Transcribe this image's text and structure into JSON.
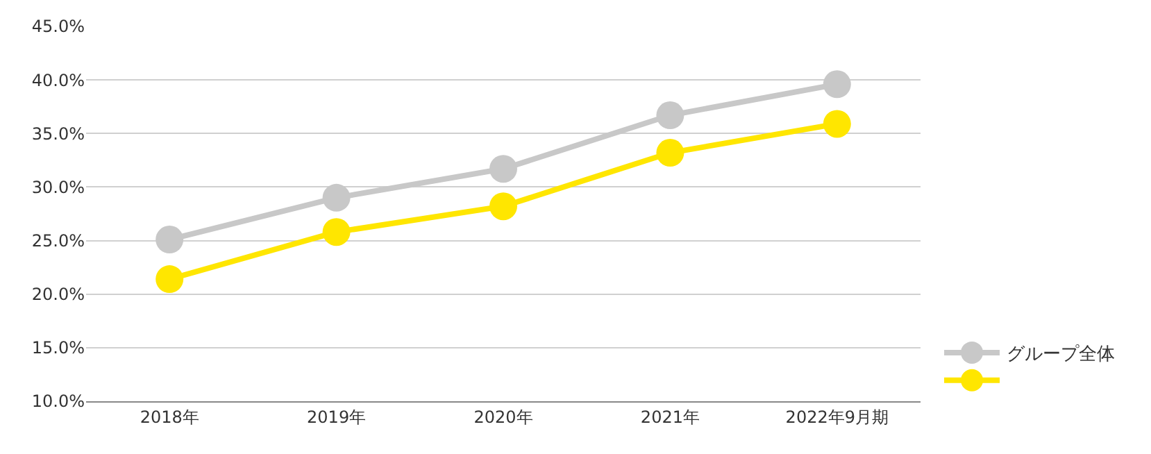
{
  "chart_data": {
    "type": "line",
    "categories": [
      "2018年",
      "2019年",
      "2020年",
      "2021年",
      "2022年9月期"
    ],
    "series": [
      {
        "name": "グループ全体",
        "color": "#c8c8c8",
        "values": [
          25.1,
          29.0,
          31.7,
          36.7,
          39.6
        ]
      },
      {
        "color": "#ffe600",
        "values": [
          21.4,
          25.8,
          28.2,
          33.2,
          35.9
        ]
      }
    ],
    "ylim": [
      10,
      45
    ],
    "yticks": [
      {
        "value": 10,
        "label": "10.0%"
      },
      {
        "value": 15,
        "label": "15.0%"
      },
      {
        "value": 20,
        "label": "20.0%"
      },
      {
        "value": 25,
        "label": "25.0%"
      },
      {
        "value": 30,
        "label": "30.0%"
      },
      {
        "value": 35,
        "label": "35.0%"
      },
      {
        "value": 40,
        "label": "40.0%"
      },
      {
        "value": 45,
        "label": "45.0%"
      }
    ],
    "grid": "y",
    "legend": "bottom right",
    "marker": "circle",
    "line_style": "solid"
  }
}
